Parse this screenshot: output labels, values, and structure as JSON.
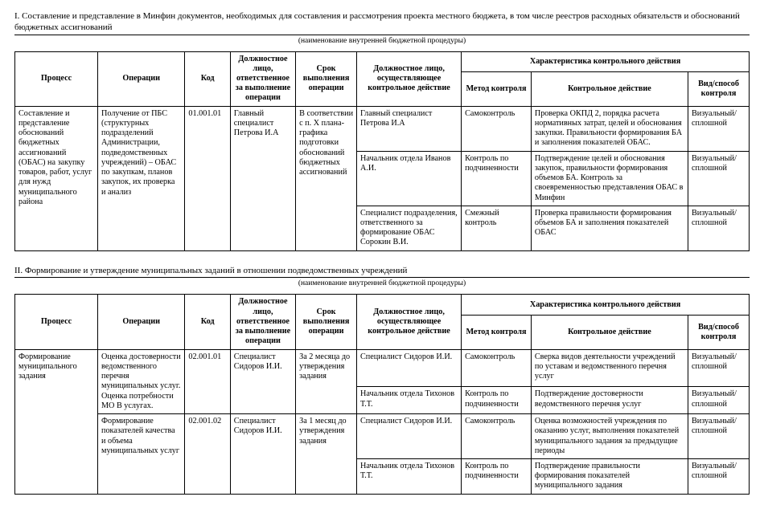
{
  "section1": {
    "title": "I. Составление и представление в Минфин документов, необходимых для составления и рассмотрения проекта местного бюджета, в том числе реестров расходных обязательств и обоснований бюджетных ассигнований",
    "caption": "(наименование внутренней бюджетной процедуры)",
    "headers": {
      "process": "Процесс",
      "operation": "Операции",
      "code": "Код",
      "responsible": "Должностное лицо, ответственное за выполнение операции",
      "term": "Срок выполнения операции",
      "controller": "Должностное лицо, осуществляющее контрольное действие",
      "group": "Характеристика контрольного действия",
      "method": "Метод контроля",
      "action": "Контрольное действие",
      "vid": "Вид/способ контроля"
    },
    "r1": {
      "process": "Составление и представление обоснований бюджетных ассигнований (ОБАС) на закупку товаров, работ, услуг для нужд муниципального района",
      "operation": "Получение от ПБС (структурных подразделений Администрации, подведомственных учреждений) – ОБАС по  закупкам, планов закупок, их проверка и анализ",
      "code": "01.001.01",
      "responsible": "Главный специалист Петрова И.А",
      "term": "В соответствии с п. X плана-графика подготовки обоснований бюджетных ассигнований",
      "controller": "Главный специалист Петрова И.А",
      "method": "Самоконтроль",
      "action": "Проверка ОКПД 2, порядка расчета нормативных затрат, целей и обоснования закупки. Правильности формирования БА и заполнения показателей ОБАС.",
      "vid": "Визуальный/ сплошной"
    },
    "r2": {
      "controller": "Начальник отдела Иванов А.И.",
      "method": "Контроль по подчиненности",
      "action": "Подтверждение целей и обоснования закупок, правильности формирования объемов БА. Контроль за своевременностью представления ОБАС в Минфин",
      "vid": "Визуальный/ сплошной"
    },
    "r3": {
      "controller": "Специалист подразделения, ответственного за формирование ОБАС Сорокин В.И.",
      "method": "Смежный контроль",
      "action": "Проверка правильности формирования объемов БА и заполнения показателей ОБАС",
      "vid": "Визуальный/ сплошной"
    }
  },
  "section2": {
    "title": "II. Формирование и утверждение муниципальных заданий в отношении подведомственных учреждений",
    "caption": "(наименование внутренней бюджетной процедуры)",
    "r1": {
      "process": "Формирование муниципального задания",
      "operation": "Оценка достоверности ведомственного перечня муниципальных услуг. Оценка потребности МО В услугах.",
      "code": "02.001.01",
      "responsible": "Специалист Сидоров И.И.",
      "term": "За 2 месяца до утверждения задания",
      "controller": "Специалист Сидоров И.И.",
      "method": "Самоконтроль",
      "action": "Сверка видов деятельности учреждений по уставам и ведомственного перечня услуг",
      "vid": "Визуальный/ сплошной"
    },
    "r2": {
      "controller": "Начальник отдела Тихонов Т.Т.",
      "method": "Контроль по подчиненности",
      "action": "Подтверждение достоверности ведомственного перечня услуг",
      "vid": "Визуальный/ сплошной"
    },
    "r3": {
      "operation": "Формирование показателей качества и объема муниципальных услуг",
      "code": "02.001.02",
      "responsible": "Специалист Сидоров И.И.",
      "term": "За 1 месяц до утверждения задания",
      "controller": "Специалист Сидоров И.И.",
      "method": "Самоконтроль",
      "action": "Оценка возможностей учреждения по оказанию услуг, выполнения показателей муниципального задания за предыдущие периоды",
      "vid": "Визуальный/ сплошной"
    },
    "r4": {
      "controller": "Начальник отдела Тихонов Т.Т.",
      "method": "Контроль по подчиненности",
      "action": "Подтверждение правильности формирования показателей муниципального задания",
      "vid": "Визуальный/ сплошной"
    }
  }
}
